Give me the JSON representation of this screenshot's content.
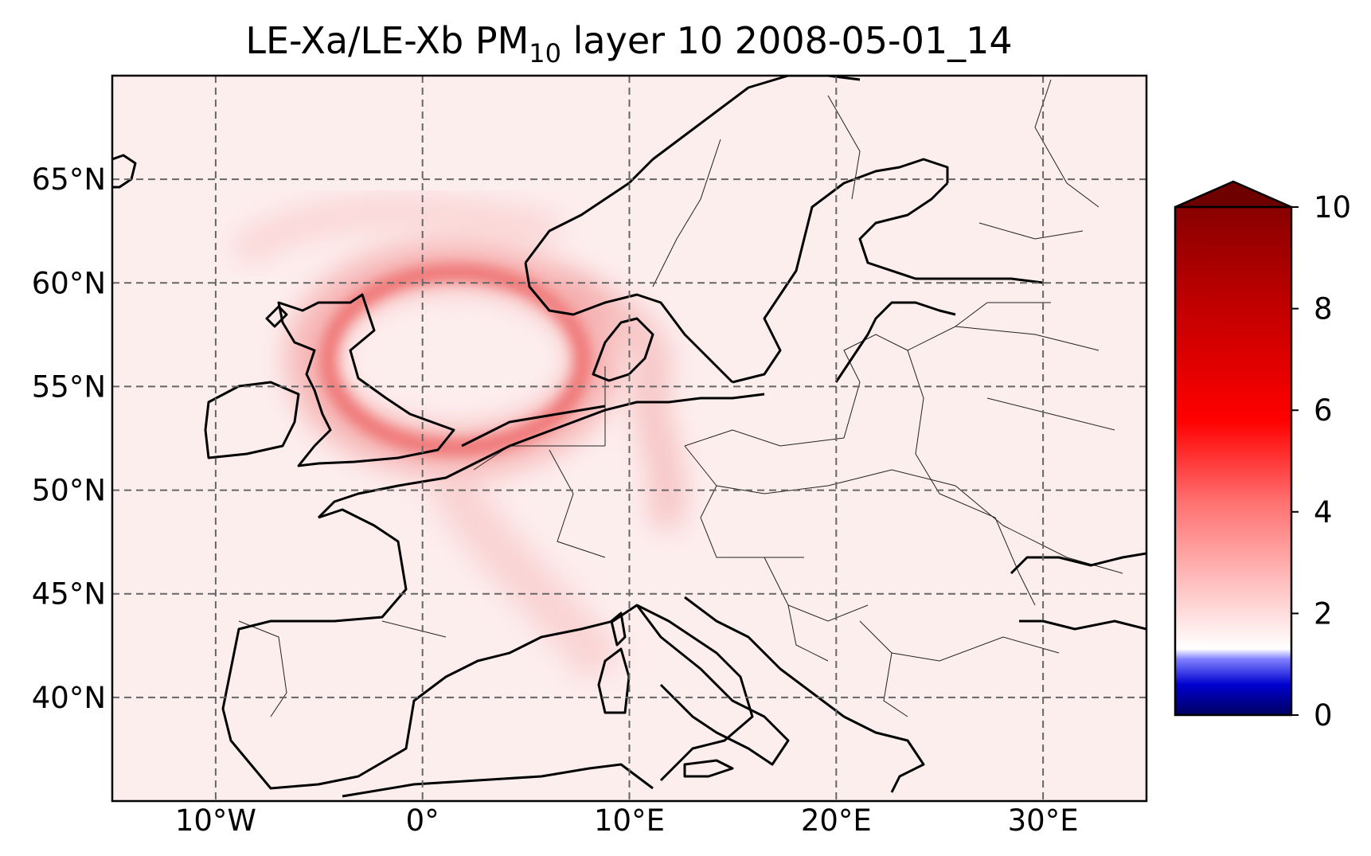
{
  "title": {
    "prefix": "LE-Xa/LE-Xb PM",
    "subscript": "10",
    "suffix": " layer 10 2008-05-01_14"
  },
  "map": {
    "lon_range": [
      -15,
      35
    ],
    "lat_range": [
      35,
      70
    ],
    "lon_ticks": [
      {
        "value": -10,
        "label": "10°W"
      },
      {
        "value": 0,
        "label": "0°"
      },
      {
        "value": 10,
        "label": "10°E"
      },
      {
        "value": 20,
        "label": "20°E"
      },
      {
        "value": 30,
        "label": "30°E"
      }
    ],
    "lat_ticks": [
      {
        "value": 40,
        "label": "40°N"
      },
      {
        "value": 45,
        "label": "45°N"
      },
      {
        "value": 50,
        "label": "50°N"
      },
      {
        "value": 55,
        "label": "55°N"
      },
      {
        "value": 60,
        "label": "60°N"
      },
      {
        "value": 65,
        "label": "65°N"
      }
    ],
    "gridlines": true,
    "field_colors": {
      "background": "#fdeeee",
      "plume": "#f07878",
      "plume_core": "#e84848",
      "coast": "#000000",
      "border": "#222222",
      "grid": "#666666"
    }
  },
  "colorbar": {
    "min": 0,
    "max": 10,
    "extend": "max",
    "ticks": [
      {
        "value": 0,
        "label": "0"
      },
      {
        "value": 2,
        "label": "2"
      },
      {
        "value": 4,
        "label": "4"
      },
      {
        "value": 6,
        "label": "6"
      },
      {
        "value": 8,
        "label": "8"
      },
      {
        "value": 10,
        "label": "10"
      }
    ],
    "colors": [
      "#000080",
      "#0000ff",
      "#ffffff",
      "#ff9a9a",
      "#ff0000",
      "#b00000",
      "#6e0000"
    ]
  }
}
